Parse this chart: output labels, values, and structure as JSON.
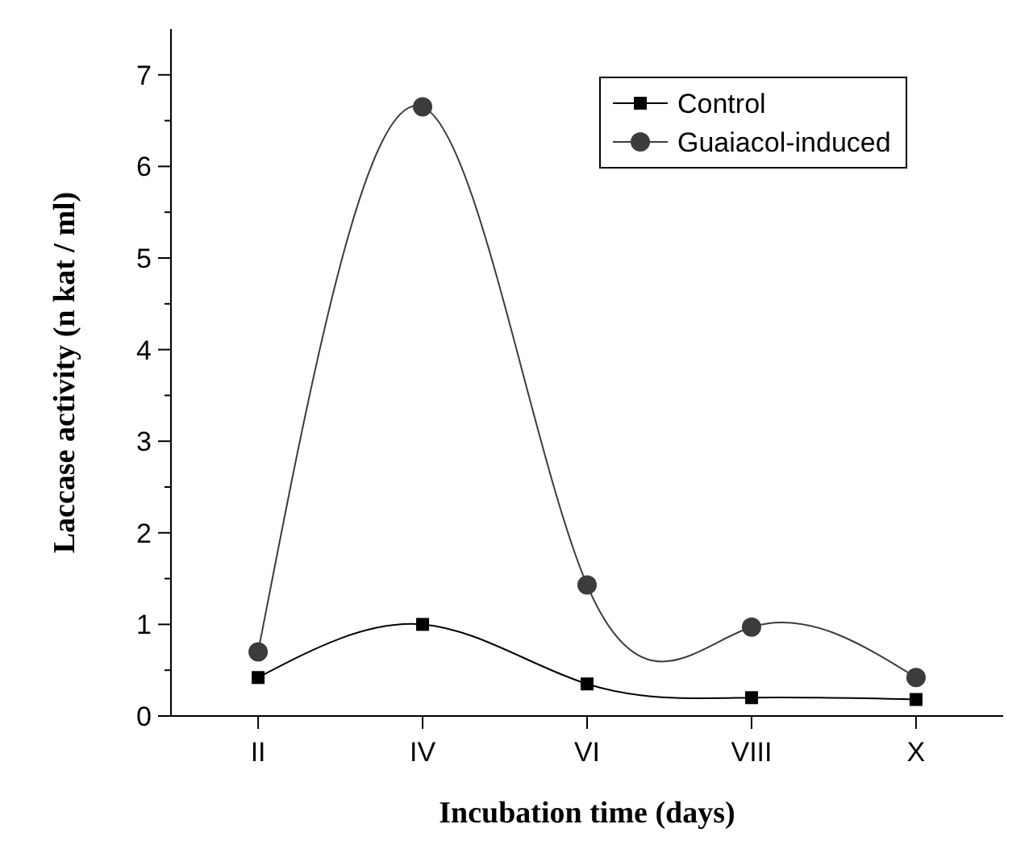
{
  "chart_data": {
    "type": "line",
    "xlabel": "Incubation time (days)",
    "ylabel": "Laccase activity (n kat / ml)",
    "categories": [
      "II",
      "IV",
      "VI",
      "VIII",
      "X"
    ],
    "series": [
      {
        "name": "Control",
        "color": "#000000",
        "marker": "square",
        "values": [
          0.42,
          1.0,
          0.35,
          0.2,
          0.18
        ]
      },
      {
        "name": "Guaiacol-induced",
        "color": "#3c3c3c",
        "marker": "circle",
        "values": [
          0.7,
          6.65,
          1.43,
          0.97,
          0.42
        ]
      }
    ],
    "ylim": [
      0,
      7.5
    ],
    "yticks": [
      0,
      {
        "value": 0.5,
        "label": null
      },
      1,
      {
        "value": 1.5,
        "label": null
      },
      2,
      {
        "value": 2.5,
        "label": null
      },
      3,
      {
        "value": 3.5,
        "label": null
      },
      4,
      {
        "value": 4.5,
        "label": null
      },
      5,
      {
        "value": 5.5,
        "label": null
      },
      6,
      {
        "value": 6.5,
        "label": null
      },
      7
    ],
    "grid": false,
    "legend": "top right"
  }
}
